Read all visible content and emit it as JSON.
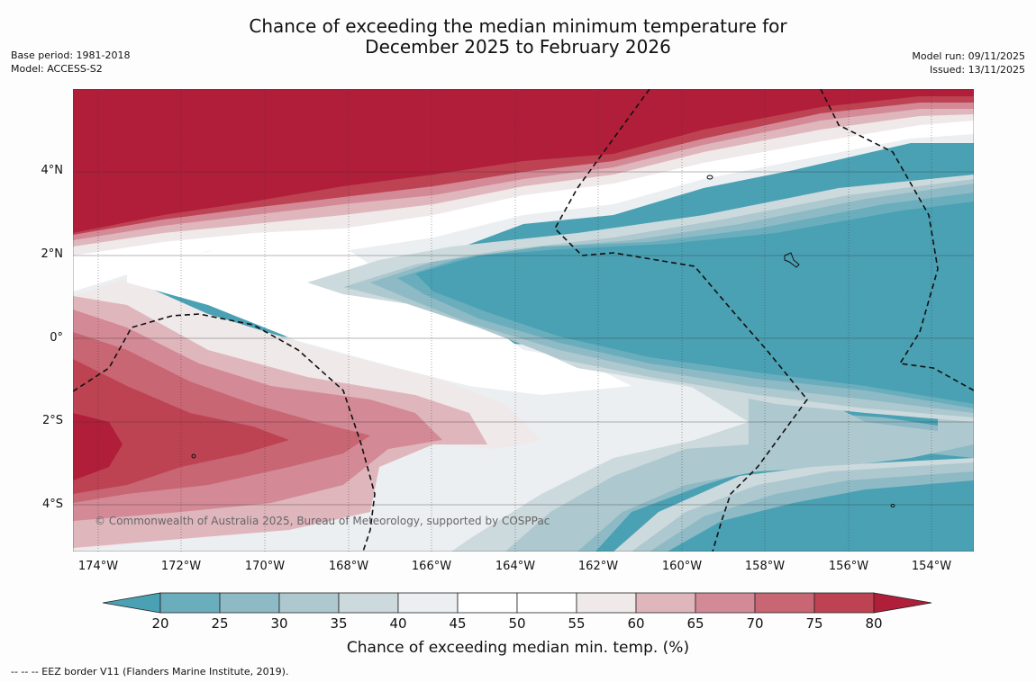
{
  "title": {
    "line1": "Chance of exceeding the median minimum temperature for",
    "line2": "December 2025 to February 2026"
  },
  "meta_left": {
    "base_period": "Base period: 1981-2018",
    "model": "Model: ACCESS-S2"
  },
  "meta_right": {
    "model_run": "Model run: 09/11/2025",
    "issued": "Issued: 13/11/2025"
  },
  "map": {
    "lat_labels": [
      "4°N",
      "2°N",
      "0°",
      "2°S",
      "4°S"
    ],
    "lon_labels": [
      "174°W",
      "172°W",
      "170°W",
      "168°W",
      "166°W",
      "164°W",
      "162°W",
      "160°W",
      "158°W",
      "156°W",
      "154°W"
    ],
    "copyright": "© Commonwealth of Australia 2025, Bureau of Meteorology, supported by COSPPac"
  },
  "colorbar": {
    "ticks": [
      "20",
      "25",
      "30",
      "35",
      "40",
      "45",
      "50",
      "55",
      "60",
      "65",
      "70",
      "75",
      "80"
    ],
    "colors": [
      "#4aa1b4",
      "#6aaebd",
      "#8dbac5",
      "#adc8ce",
      "#ccdadd",
      "#ebeff1",
      "#ffffff",
      "#ffffff",
      "#efe9ea",
      "#e0b6bd",
      "#d38a96",
      "#c86673",
      "#bd4353",
      "#b11e3a"
    ],
    "label": "Chance of exceeding median min. temp. (%)"
  },
  "footnote": "--  --  -- EEZ border V11 (Flanders Marine Institute, 2019)."
}
